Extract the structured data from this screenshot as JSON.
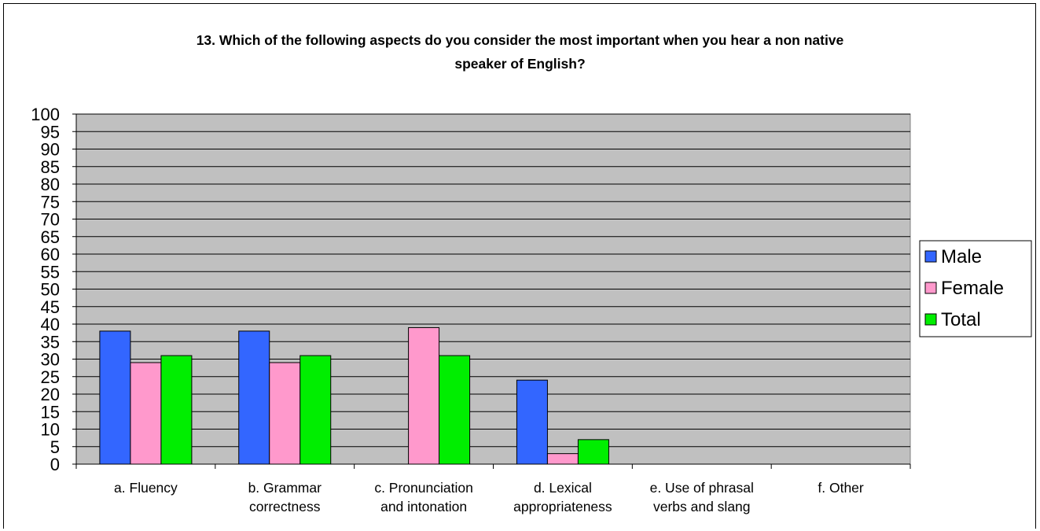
{
  "chart_data": {
    "type": "bar",
    "title": "13. Which of the following aspects do you consider the most important when you hear a non native\nspeaker of English?",
    "categories": [
      [
        "a. Fluency"
      ],
      [
        "b. Grammar",
        "correctness"
      ],
      [
        "c. Pronunciation",
        "and intonation"
      ],
      [
        "d. Lexical",
        "appropriateness"
      ],
      [
        "e. Use of phrasal",
        "verbs and slang"
      ],
      [
        "f. Other"
      ]
    ],
    "series": [
      {
        "name": "Male",
        "color": "#3366ff",
        "values": [
          38,
          38,
          0,
          24,
          0,
          0
        ]
      },
      {
        "name": "Female",
        "color": "#ff99cc",
        "values": [
          29,
          29,
          39,
          3,
          0,
          0
        ]
      },
      {
        "name": "Total",
        "color": "#00ee00",
        "values": [
          31,
          31,
          31,
          7,
          0,
          0
        ]
      }
    ],
    "ylim": [
      0,
      100
    ],
    "ytick_step": 5,
    "grid": true,
    "plot_background": "#c0c0c0",
    "legend_position": "right"
  }
}
